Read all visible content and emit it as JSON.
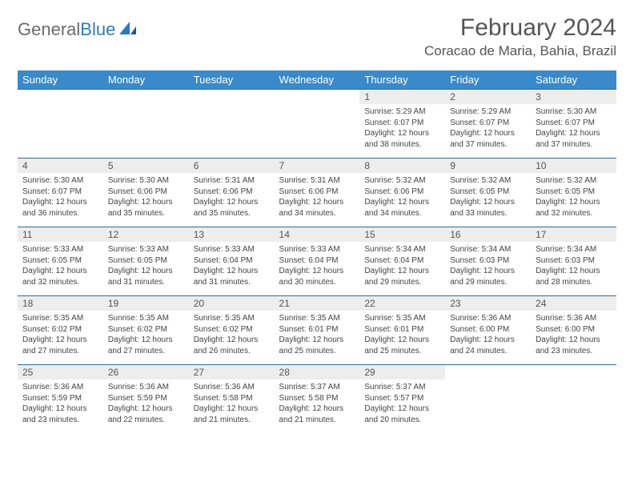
{
  "brand": {
    "word1": "General",
    "word2": "Blue"
  },
  "title": "February 2024",
  "location": "Coracao de Maria, Bahia, Brazil",
  "colors": {
    "header_bg": "#3a8ac9",
    "header_text": "#ffffff",
    "row_border": "#2f6aa0",
    "daynum_bg": "#ededed",
    "text": "#444444"
  },
  "columns": [
    "Sunday",
    "Monday",
    "Tuesday",
    "Wednesday",
    "Thursday",
    "Friday",
    "Saturday"
  ],
  "weeks": [
    [
      {
        "n": "",
        "lines": []
      },
      {
        "n": "",
        "lines": []
      },
      {
        "n": "",
        "lines": []
      },
      {
        "n": "",
        "lines": []
      },
      {
        "n": "1",
        "lines": [
          "Sunrise: 5:29 AM",
          "Sunset: 6:07 PM",
          "Daylight: 12 hours",
          "and 38 minutes."
        ]
      },
      {
        "n": "2",
        "lines": [
          "Sunrise: 5:29 AM",
          "Sunset: 6:07 PM",
          "Daylight: 12 hours",
          "and 37 minutes."
        ]
      },
      {
        "n": "3",
        "lines": [
          "Sunrise: 5:30 AM",
          "Sunset: 6:07 PM",
          "Daylight: 12 hours",
          "and 37 minutes."
        ]
      }
    ],
    [
      {
        "n": "4",
        "lines": [
          "Sunrise: 5:30 AM",
          "Sunset: 6:07 PM",
          "Daylight: 12 hours",
          "and 36 minutes."
        ]
      },
      {
        "n": "5",
        "lines": [
          "Sunrise: 5:30 AM",
          "Sunset: 6:06 PM",
          "Daylight: 12 hours",
          "and 35 minutes."
        ]
      },
      {
        "n": "6",
        "lines": [
          "Sunrise: 5:31 AM",
          "Sunset: 6:06 PM",
          "Daylight: 12 hours",
          "and 35 minutes."
        ]
      },
      {
        "n": "7",
        "lines": [
          "Sunrise: 5:31 AM",
          "Sunset: 6:06 PM",
          "Daylight: 12 hours",
          "and 34 minutes."
        ]
      },
      {
        "n": "8",
        "lines": [
          "Sunrise: 5:32 AM",
          "Sunset: 6:06 PM",
          "Daylight: 12 hours",
          "and 34 minutes."
        ]
      },
      {
        "n": "9",
        "lines": [
          "Sunrise: 5:32 AM",
          "Sunset: 6:05 PM",
          "Daylight: 12 hours",
          "and 33 minutes."
        ]
      },
      {
        "n": "10",
        "lines": [
          "Sunrise: 5:32 AM",
          "Sunset: 6:05 PM",
          "Daylight: 12 hours",
          "and 32 minutes."
        ]
      }
    ],
    [
      {
        "n": "11",
        "lines": [
          "Sunrise: 5:33 AM",
          "Sunset: 6:05 PM",
          "Daylight: 12 hours",
          "and 32 minutes."
        ]
      },
      {
        "n": "12",
        "lines": [
          "Sunrise: 5:33 AM",
          "Sunset: 6:05 PM",
          "Daylight: 12 hours",
          "and 31 minutes."
        ]
      },
      {
        "n": "13",
        "lines": [
          "Sunrise: 5:33 AM",
          "Sunset: 6:04 PM",
          "Daylight: 12 hours",
          "and 31 minutes."
        ]
      },
      {
        "n": "14",
        "lines": [
          "Sunrise: 5:33 AM",
          "Sunset: 6:04 PM",
          "Daylight: 12 hours",
          "and 30 minutes."
        ]
      },
      {
        "n": "15",
        "lines": [
          "Sunrise: 5:34 AM",
          "Sunset: 6:04 PM",
          "Daylight: 12 hours",
          "and 29 minutes."
        ]
      },
      {
        "n": "16",
        "lines": [
          "Sunrise: 5:34 AM",
          "Sunset: 6:03 PM",
          "Daylight: 12 hours",
          "and 29 minutes."
        ]
      },
      {
        "n": "17",
        "lines": [
          "Sunrise: 5:34 AM",
          "Sunset: 6:03 PM",
          "Daylight: 12 hours",
          "and 28 minutes."
        ]
      }
    ],
    [
      {
        "n": "18",
        "lines": [
          "Sunrise: 5:35 AM",
          "Sunset: 6:02 PM",
          "Daylight: 12 hours",
          "and 27 minutes."
        ]
      },
      {
        "n": "19",
        "lines": [
          "Sunrise: 5:35 AM",
          "Sunset: 6:02 PM",
          "Daylight: 12 hours",
          "and 27 minutes."
        ]
      },
      {
        "n": "20",
        "lines": [
          "Sunrise: 5:35 AM",
          "Sunset: 6:02 PM",
          "Daylight: 12 hours",
          "and 26 minutes."
        ]
      },
      {
        "n": "21",
        "lines": [
          "Sunrise: 5:35 AM",
          "Sunset: 6:01 PM",
          "Daylight: 12 hours",
          "and 25 minutes."
        ]
      },
      {
        "n": "22",
        "lines": [
          "Sunrise: 5:35 AM",
          "Sunset: 6:01 PM",
          "Daylight: 12 hours",
          "and 25 minutes."
        ]
      },
      {
        "n": "23",
        "lines": [
          "Sunrise: 5:36 AM",
          "Sunset: 6:00 PM",
          "Daylight: 12 hours",
          "and 24 minutes."
        ]
      },
      {
        "n": "24",
        "lines": [
          "Sunrise: 5:36 AM",
          "Sunset: 6:00 PM",
          "Daylight: 12 hours",
          "and 23 minutes."
        ]
      }
    ],
    [
      {
        "n": "25",
        "lines": [
          "Sunrise: 5:36 AM",
          "Sunset: 5:59 PM",
          "Daylight: 12 hours",
          "and 23 minutes."
        ]
      },
      {
        "n": "26",
        "lines": [
          "Sunrise: 5:36 AM",
          "Sunset: 5:59 PM",
          "Daylight: 12 hours",
          "and 22 minutes."
        ]
      },
      {
        "n": "27",
        "lines": [
          "Sunrise: 5:36 AM",
          "Sunset: 5:58 PM",
          "Daylight: 12 hours",
          "and 21 minutes."
        ]
      },
      {
        "n": "28",
        "lines": [
          "Sunrise: 5:37 AM",
          "Sunset: 5:58 PM",
          "Daylight: 12 hours",
          "and 21 minutes."
        ]
      },
      {
        "n": "29",
        "lines": [
          "Sunrise: 5:37 AM",
          "Sunset: 5:57 PM",
          "Daylight: 12 hours",
          "and 20 minutes."
        ]
      },
      {
        "n": "",
        "lines": []
      },
      {
        "n": "",
        "lines": []
      }
    ]
  ]
}
